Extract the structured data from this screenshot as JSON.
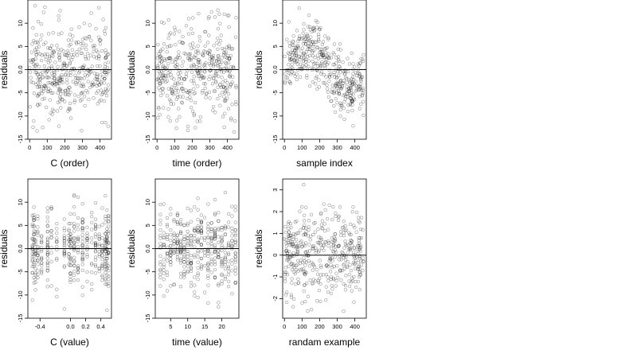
{
  "chart_data": [
    {
      "type": "scatter",
      "xlabel": "C (order)",
      "ylabel": "residuals",
      "xlim": [
        -10,
        465
      ],
      "ylim": [
        -15,
        15
      ],
      "xticks": [
        "0",
        "100",
        "200",
        "300",
        "400"
      ],
      "xtick_values": [
        0,
        100,
        200,
        300,
        400
      ],
      "yticks": [
        "-15",
        "-10",
        "-5",
        "0.0",
        "5",
        "10"
      ],
      "ytick_values": [
        -15,
        -10,
        -5,
        0,
        5,
        10
      ],
      "hline": 0,
      "pattern": "uniform",
      "seed": 11,
      "n": 430,
      "x_range": [
        0,
        450
      ],
      "spread": 5.2
    },
    {
      "type": "scatter",
      "xlabel": "time (order)",
      "ylabel": "residuals",
      "xlim": [
        -10,
        465
      ],
      "ylim": [
        -15,
        15
      ],
      "xticks": [
        "0",
        "100",
        "200",
        "300",
        "400"
      ],
      "xtick_values": [
        0,
        100,
        200,
        300,
        400
      ],
      "yticks": [
        "-15",
        "-10",
        "-5",
        "0.0",
        "5",
        "10"
      ],
      "ytick_values": [
        -15,
        -10,
        -5,
        0,
        5,
        10
      ],
      "hline": 0,
      "pattern": "uniform",
      "seed": 23,
      "n": 430,
      "x_range": [
        0,
        450
      ],
      "spread": 5.2
    },
    {
      "type": "scatter",
      "xlabel": "sample index",
      "ylabel": "residuals",
      "xlim": [
        -10,
        465
      ],
      "ylim": [
        -15,
        15
      ],
      "xticks": [
        "0",
        "100",
        "200",
        "300",
        "400"
      ],
      "xtick_values": [
        0,
        100,
        200,
        300,
        400
      ],
      "yticks": [
        "-15",
        "-10",
        "-5",
        "0.0",
        "5",
        "10"
      ],
      "ytick_values": [
        -15,
        -10,
        -5,
        0,
        5,
        10
      ],
      "hline": 0,
      "pattern": "wave",
      "seed": 37,
      "n": 430,
      "x_range": [
        0,
        450
      ],
      "spread": 3.2
    },
    {
      "type": "scatter",
      "xlabel": "C (value)",
      "ylabel": "residuals",
      "xlim": [
        -0.56,
        0.54
      ],
      "ylim": [
        -15,
        15
      ],
      "xticks": [
        "-0.4",
        "0.0",
        "0.2",
        "0.4"
      ],
      "xtick_values": [
        -0.4,
        0.0,
        0.2,
        0.4
      ],
      "yticks": [
        "-15",
        "-10",
        "-5",
        "0.0",
        "5",
        "10"
      ],
      "ytick_values": [
        -15,
        -10,
        -5,
        0,
        5,
        10
      ],
      "hline": 0,
      "pattern": "columns",
      "seed": 41,
      "n": 430,
      "column_positions": [
        -0.5,
        -0.48,
        -0.46,
        -0.43,
        -0.38,
        -0.3,
        -0.25,
        -0.18,
        -0.08,
        -0.02,
        0.0,
        0.05,
        0.1,
        0.16,
        0.22,
        0.28,
        0.33,
        0.38,
        0.42,
        0.46,
        0.48,
        0.5
      ],
      "spread": 5.2
    },
    {
      "type": "scatter",
      "xlabel": "time (value)",
      "ylabel": "residuals",
      "xlim": [
        0.5,
        25
      ],
      "ylim": [
        -15,
        15
      ],
      "xticks": [
        "5",
        "10",
        "15",
        "20"
      ],
      "xtick_values": [
        5,
        10,
        15,
        20
      ],
      "yticks": [
        "-15",
        "-10",
        "-5",
        "0.0",
        "5",
        "10"
      ],
      "ytick_values": [
        -15,
        -10,
        -5,
        0,
        5,
        10
      ],
      "hline": 0,
      "pattern": "columns",
      "seed": 53,
      "n": 430,
      "column_positions": [
        2,
        3,
        4,
        5,
        6,
        7,
        8,
        9,
        10,
        11,
        12,
        13,
        14,
        15,
        16,
        17,
        18,
        19,
        20,
        21,
        22,
        23,
        24
      ],
      "spread": 5.2
    },
    {
      "type": "scatter",
      "xlabel": "randam example",
      "ylabel": "residuals",
      "xlim": [
        -10,
        465
      ],
      "ylim": [
        -2.9,
        3.5
      ],
      "xticks": [
        "0",
        "100",
        "200",
        "300",
        "400"
      ],
      "xtick_values": [
        0,
        100,
        200,
        300,
        400
      ],
      "yticks": [
        "-2",
        "-1",
        "0",
        "1",
        "2",
        "3"
      ],
      "ytick_values": [
        -2,
        -1,
        0,
        1,
        2,
        3
      ],
      "hline": 0,
      "pattern": "uniform",
      "seed": 67,
      "n": 430,
      "x_range": [
        0,
        450
      ],
      "spread": 1.0
    }
  ]
}
